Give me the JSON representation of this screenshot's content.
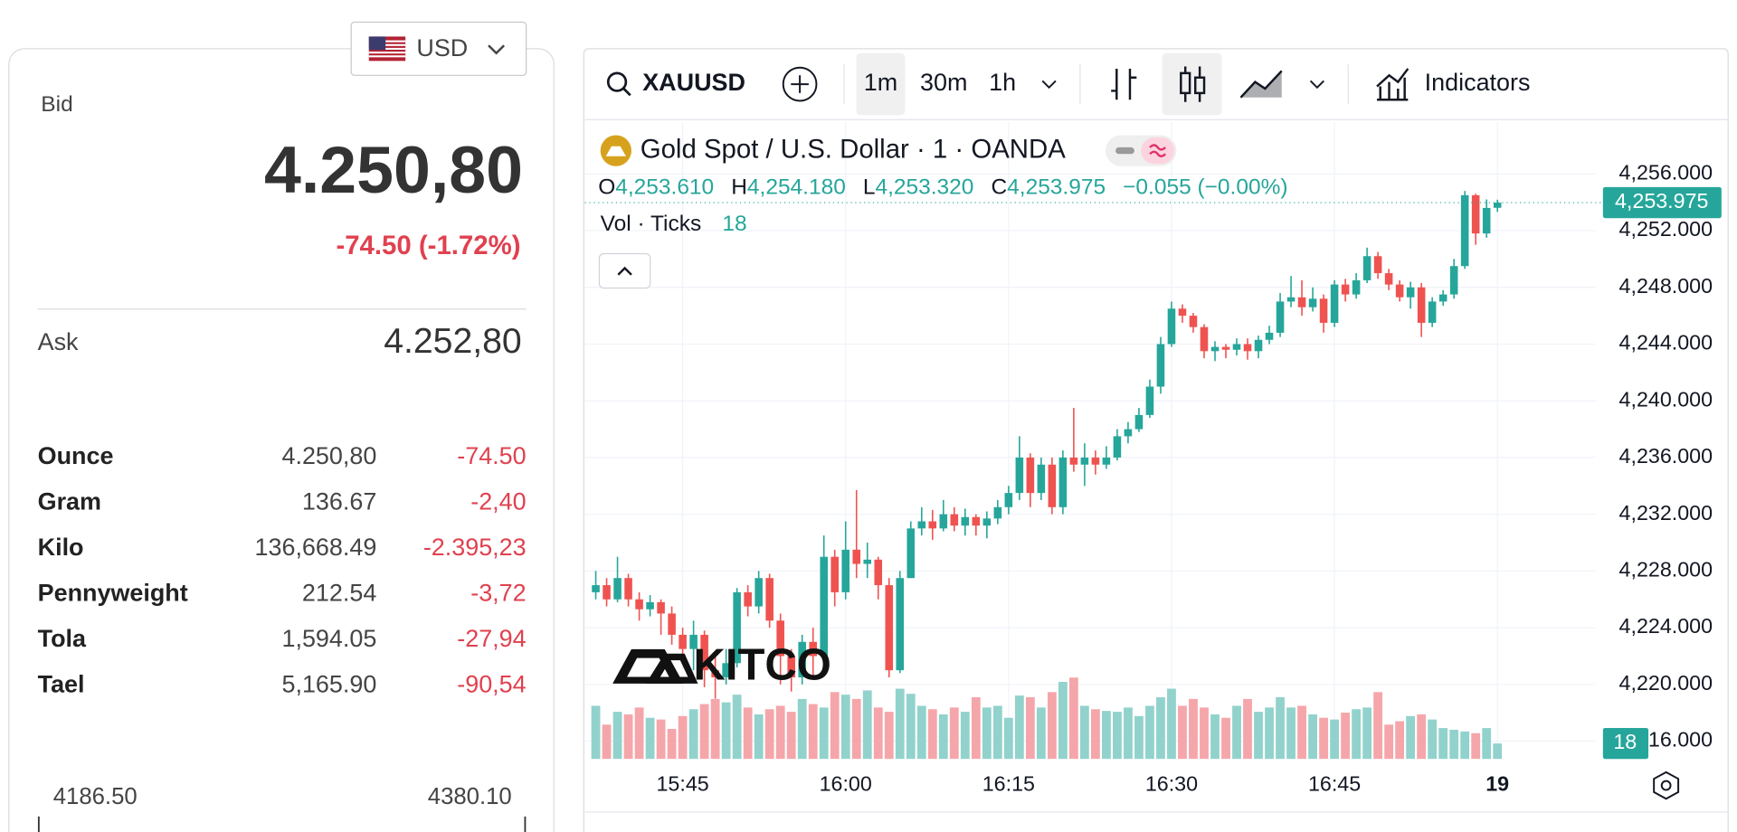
{
  "panel": {
    "currency": "USD",
    "bid_label": "Bid",
    "bid": "4.250,80",
    "change": "-74.50 (-1.72%)",
    "ask_label": "Ask",
    "ask": "4.252,80",
    "units": [
      {
        "name": "Ounce",
        "price": "4.250,80",
        "change": "-74.50"
      },
      {
        "name": "Gram",
        "price": "136.67",
        "change": "-2,40"
      },
      {
        "name": "Kilo",
        "price": "136,668.49",
        "change": "-2.395,23"
      },
      {
        "name": "Pennyweight",
        "price": "212.54",
        "change": "-3,72"
      },
      {
        "name": "Tola",
        "price": "1,594.05",
        "change": "-27,94"
      },
      {
        "name": "Tael",
        "price": "5,165.90",
        "change": "-90,54"
      }
    ],
    "range": {
      "low": "4186.50",
      "high": "4380.10"
    }
  },
  "toolbar": {
    "symbol": "XAUUSD",
    "intervals": [
      "1m",
      "30m",
      "1h"
    ],
    "indicators": "Indicators"
  },
  "chart_data": {
    "type": "candlestick",
    "title": "Gold Spot / U.S. Dollar · 1 · OANDA",
    "ohlc_legend": {
      "open": {
        "key": "O",
        "value": "4,253.610"
      },
      "high": {
        "key": "H",
        "value": "4,254.180"
      },
      "low": {
        "key": "L",
        "value": "4,253.320"
      },
      "close": {
        "key": "C",
        "value": "4,253.975"
      },
      "change": "−0.055 (−0.00%)"
    },
    "volume_label": "Vol · Ticks",
    "watermark": "KITCO",
    "up_color": "#26a69a",
    "down_color": "#ef5350",
    "up_volume_color": "#92d2cc",
    "down_volume_color": "#f5a6aa",
    "x": [
      "15:37",
      "15:38",
      "15:39",
      "15:40",
      "15:41",
      "15:42",
      "15:43",
      "15:44",
      "15:45",
      "15:46",
      "15:47",
      "15:48",
      "15:49",
      "15:50",
      "15:51",
      "15:52",
      "15:53",
      "15:54",
      "15:55",
      "15:56",
      "15:57",
      "15:58",
      "15:59",
      "16:00",
      "16:01",
      "16:02",
      "16:03",
      "16:04",
      "16:05",
      "16:06",
      "16:07",
      "16:08",
      "16:09",
      "16:10",
      "16:11",
      "16:12",
      "16:13",
      "16:14",
      "16:15",
      "16:16",
      "16:17",
      "16:18",
      "16:19",
      "16:20",
      "16:21",
      "16:22",
      "16:23",
      "16:24",
      "16:25",
      "16:26",
      "16:27",
      "16:28",
      "16:29",
      "16:30",
      "16:31",
      "16:32",
      "16:33",
      "16:34",
      "16:35",
      "16:36",
      "16:37",
      "16:38",
      "16:39",
      "16:40",
      "16:41",
      "16:42",
      "16:43",
      "16:44",
      "16:45",
      "16:46",
      "16:47",
      "16:48",
      "16:49",
      "16:50",
      "16:51",
      "16:52",
      "16:53",
      "16:54",
      "16:55",
      "16:56",
      "16:57",
      "16:58",
      "16:59",
      "17:00"
    ],
    "open": [
      4226.5,
      4227,
      4226,
      4227.5,
      4226,
      4225.3,
      4225.8,
      4225,
      4223.5,
      4222.5,
      4223.5,
      4221,
      4220.5,
      4221.5,
      4226.5,
      4225.5,
      4227.5,
      4224.5,
      4222,
      4220.5,
      4223,
      4222,
      4229,
      4226.5,
      4229.5,
      4228.5,
      4228.8,
      4227,
      4221,
      4227.5,
      4231,
      4231.5,
      4231,
      4232,
      4231.2,
      4231.8,
      4231.2,
      4231.7,
      4232.5,
      4233.5,
      4236,
      4233.5,
      4235.5,
      4232.5,
      4236,
      4235.5,
      4236,
      4235.5,
      4236,
      4237.5,
      4238,
      4239,
      4241,
      4244,
      4246.5,
      4246,
      4245.2,
      4243.5,
      4243.8,
      4243.6,
      4244,
      4243.5,
      4244.3,
      4244.8,
      4247,
      4247.3,
      4246.6,
      4247.2,
      4245.5,
      4248.2,
      4247.5,
      4248.5,
      4250.2,
      4249,
      4248.2,
      4247.3,
      4248,
      4245.5,
      4247,
      4247.5,
      4249.5,
      4254.5,
      4251.8,
      4253.61
    ],
    "high": [
      4228,
      4227.5,
      4229,
      4227.8,
      4226.5,
      4226.3,
      4226,
      4225.5,
      4224,
      4224.5,
      4223.8,
      4222,
      4222.5,
      4226.8,
      4227,
      4228,
      4227.8,
      4225,
      4222.5,
      4223.5,
      4224,
      4230.5,
      4229.5,
      4231.5,
      4233.7,
      4230,
      4229,
      4227.5,
      4228,
      4231.5,
      4232.5,
      4232.3,
      4233,
      4232.5,
      4232.4,
      4232,
      4232.2,
      4233,
      4234,
      4237.5,
      4236.3,
      4236,
      4236,
      4236.5,
      4239.5,
      4237,
      4236.5,
      4236.8,
      4238,
      4238.5,
      4239.5,
      4241.5,
      4244.5,
      4247,
      4246.8,
      4246.2,
      4245.4,
      4244.2,
      4244,
      4244.4,
      4244.4,
      4244.6,
      4245.3,
      4247.6,
      4248.8,
      4248.5,
      4248,
      4247.5,
      4248.5,
      4248.6,
      4249,
      4250.8,
      4250.5,
      4249.3,
      4248.5,
      4248.4,
      4248.3,
      4247.3,
      4247.8,
      4250,
      4254.8,
      4254.6,
      4254.2,
      4254.18
    ],
    "low": [
      4226,
      4225.5,
      4225.8,
      4225.5,
      4224.5,
      4224.8,
      4223.5,
      4222.8,
      4221.5,
      4221,
      4219.8,
      4219,
      4220,
      4221.2,
      4224.8,
      4225,
      4224,
      4220,
      4219.5,
      4220,
      4220.5,
      4221.5,
      4225.5,
      4226,
      4227.5,
      4227.5,
      4226,
      4220.5,
      4220.8,
      4227.5,
      4230.5,
      4230.2,
      4230.8,
      4230.8,
      4230.5,
      4230.5,
      4230.3,
      4231.3,
      4232,
      4233,
      4232.5,
      4233,
      4232,
      4232,
      4235,
      4234,
      4234.8,
      4235.2,
      4235.8,
      4237,
      4237.8,
      4238.8,
      4240.5,
      4243.8,
      4245.5,
      4244.8,
      4243,
      4242.8,
      4243,
      4243.2,
      4242.9,
      4243,
      4244,
      4244.5,
      4246.6,
      4246,
      4246.3,
      4244.8,
      4245.2,
      4247,
      4247.2,
      4248.3,
      4248.6,
      4247.8,
      4247,
      4246.5,
      4244.5,
      4245.2,
      4246.7,
      4247.2,
      4249.3,
      4251,
      4251.5,
      4253.32
    ],
    "close": [
      4227,
      4226,
      4227.5,
      4226,
      4225.3,
      4225.8,
      4225,
      4223.5,
      4222.5,
      4223.5,
      4221,
      4220.5,
      4221.5,
      4226.5,
      4225.5,
      4227.5,
      4224.5,
      4222,
      4220.5,
      4223,
      4222,
      4229,
      4226.5,
      4229.5,
      4228.5,
      4228.8,
      4227,
      4221,
      4227.5,
      4231,
      4231.5,
      4231,
      4232,
      4231.2,
      4231.8,
      4231.2,
      4231.7,
      4232.5,
      4233.5,
      4236,
      4233.5,
      4235.5,
      4232.5,
      4236,
      4235.5,
      4236,
      4235.5,
      4236,
      4237.5,
      4238,
      4239,
      4241,
      4244,
      4246.5,
      4246,
      4245.2,
      4243.5,
      4243.8,
      4243.6,
      4244,
      4243.5,
      4244.3,
      4244.8,
      4247,
      4247.3,
      4246.6,
      4247.2,
      4245.5,
      4248.2,
      4247.5,
      4248.5,
      4250.2,
      4249,
      4248.2,
      4247.3,
      4248,
      4245.5,
      4247,
      4247.5,
      4249.5,
      4254.5,
      4251.8,
      4253.6,
      4253.975
    ],
    "volume": [
      62,
      40,
      55,
      52,
      60,
      48,
      46,
      35,
      50,
      58,
      64,
      70,
      66,
      75,
      60,
      52,
      58,
      62,
      55,
      70,
      64,
      60,
      78,
      75,
      70,
      80,
      60,
      55,
      82,
      76,
      62,
      58,
      52,
      60,
      55,
      72,
      60,
      62,
      48,
      74,
      72,
      60,
      78,
      90,
      95,
      62,
      58,
      56,
      55,
      60,
      50,
      62,
      72,
      82,
      62,
      70,
      60,
      52,
      48,
      62,
      70,
      55,
      60,
      72,
      60,
      62,
      52,
      48,
      46,
      54,
      58,
      60,
      78,
      40,
      44,
      50,
      52,
      46,
      36,
      34,
      32,
      30,
      36,
      18
    ],
    "xlim": [
      "15:36",
      "17:09"
    ],
    "xticks": [
      "15:45",
      "16:00",
      "16:15",
      "16:30",
      "16:45",
      {
        "value": "17:00",
        "label": "19"
      }
    ],
    "ylim": [
      4214.75,
      4259.67
    ],
    "yticks": [
      {
        "value": 4256,
        "label": "4,256.000"
      },
      {
        "value": 4252,
        "label": "4,252.000"
      },
      {
        "value": 4248,
        "label": "4,248.000"
      },
      {
        "value": 4244,
        "label": "4,244.000"
      },
      {
        "value": 4240,
        "label": "4,240.000"
      },
      {
        "value": 4236,
        "label": "4,236.000"
      },
      {
        "value": 4232,
        "label": "4,232.000"
      },
      {
        "value": 4228,
        "label": "4,228.000"
      },
      {
        "value": 4224,
        "label": "4,224.000"
      },
      {
        "value": 4220,
        "label": "4,220.000"
      },
      {
        "value": 4216,
        "label": "4,216.000"
      }
    ],
    "volume_lim": [
      0,
      110
    ],
    "last_price": {
      "value": 4253.975,
      "label": "4,253.975"
    },
    "grid": true
  }
}
